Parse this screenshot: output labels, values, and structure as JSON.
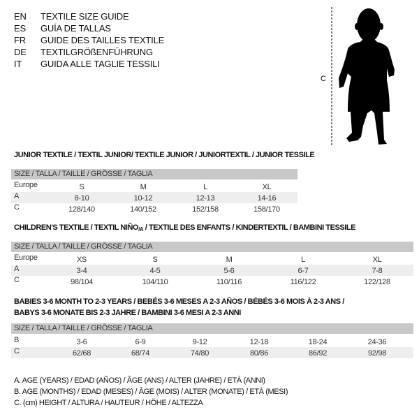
{
  "header": {
    "languages": [
      {
        "code": "EN",
        "title": "TEXTILE SIZE GUIDE"
      },
      {
        "code": "ES",
        "title": "GUÍA DE TALLAS"
      },
      {
        "code": "FR",
        "title": "GUIDE DES TAILLES TEXTILE"
      },
      {
        "code": "DE",
        "title": "TEXTILGRÖßENFÜHRUNG"
      },
      {
        "code": "IT",
        "title": "GUIDA ALLE TAGLIE TESSILI"
      }
    ],
    "figure_label": "C",
    "figure_icon": "child-silhouette-icon"
  },
  "junior": {
    "title": "JUNIOR TEXTILE / TEXTIL JUNIOR/ TEXTILE JUNIOR / JUNIORTEXTIL / JUNIOR TESSILE",
    "header": "SIZE / TALLA / TAILLE / GRÖSSE / TAGLIA",
    "rows": [
      {
        "label": "Europe",
        "cells": [
          "S",
          "M",
          "L",
          "XL"
        ]
      },
      {
        "label": "A",
        "cells": [
          "8-10",
          "10-12",
          "12-13",
          "14-16"
        ]
      },
      {
        "label": "C",
        "cells": [
          "128/140",
          "140/152",
          "152/158",
          "158/170"
        ]
      }
    ]
  },
  "children": {
    "title_a": "CHILDREN'S TEXTILE / TEXTIL NIÑO",
    "title_sub": "/A",
    "title_b": " / TEXTILE DES ENFANTS / KINDERTEXTIL / BAMBINI TESSILE",
    "header": "SIZE / TALLA / TAILLE / GRÖSSE / TAGLIA",
    "rows": [
      {
        "label": "Europe",
        "cells": [
          "XS",
          "S",
          "M",
          "L",
          "XL"
        ]
      },
      {
        "label": "A",
        "cells": [
          "3-4",
          "4-5",
          "5-6",
          "6-7",
          "7-8"
        ]
      },
      {
        "label": "C",
        "cells": [
          "98/104",
          "104/110",
          "110/116",
          "116/122",
          "122/128"
        ]
      }
    ]
  },
  "babies": {
    "title_line1": "BABIES 3-6 MONTH TO 2-3 YEARS / BEBÉS 3-6 MESES A 2-3 AÑOS / BÉBÉS 3-6 MOIS À 2-3 ANS /",
    "title_line2": "BABYS 3-6 MONATE BIS 2-3 JAHRE / BAMBINI 3-6 MESI A 2-3 ANNI",
    "header": "SIZE / TALLA / TAILLE / GRÖSSE / TAGLIA",
    "rows": [
      {
        "label": "B",
        "cells": [
          "3-6",
          "6-9",
          "9-12",
          "12-18",
          "18-24",
          "24-36"
        ]
      },
      {
        "label": "C",
        "cells": [
          "62/68",
          "68/74",
          "74/80",
          "80/86",
          "86/92",
          "92/98"
        ]
      }
    ]
  },
  "legend": [
    "A. AGE (YEARS) / EDAD (AÑOS) / ÂGE (ANS) / ALTER (JAHRE) / ETÀ (ANNI)",
    "B. AGE (MONTHS) / EDAD (MESES) / ÂGE (MOIS) / ALTER (MONATE) / ETÀ (MESI)",
    "C. (cm) HEIGHT / ALTURA / HAUTEUR / HÖHE / ALTEZZA"
  ]
}
